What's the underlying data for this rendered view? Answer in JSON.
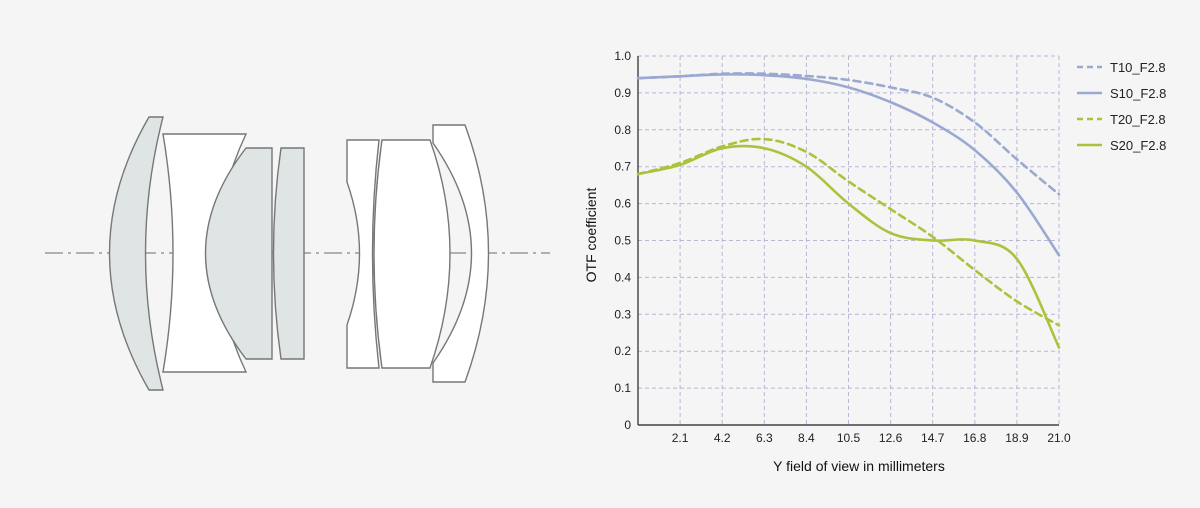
{
  "colors": {
    "background": "#f5f5f5",
    "lens_fill": "#dfe4e4",
    "lens_fill_light": "#ffffff",
    "lens_stroke": "#777777",
    "grid": "#b9b6d6",
    "axis": "#222222",
    "blue": "#9ba8d2",
    "green": "#a9c43c"
  },
  "lens_diagram": {
    "optical_axis_style": "dash-dot",
    "element_count": 8
  },
  "chart_data": {
    "type": "line",
    "title": "",
    "xlabel": "Y field of view in millimeters",
    "ylabel": "OTF coefficient",
    "xlim": [
      0,
      21.0
    ],
    "ylim": [
      0,
      1.0
    ],
    "x_ticks": [
      2.1,
      4.2,
      6.3,
      8.4,
      10.5,
      12.6,
      14.7,
      16.8,
      18.9,
      21.0
    ],
    "x_tick_labels": [
      "2.1",
      "4.2",
      "6.3",
      "8.4",
      "10.5",
      "12.6",
      "14.7",
      "16.8",
      "18.9",
      "21.0"
    ],
    "y_ticks": [
      0,
      0.1,
      0.2,
      0.3,
      0.4,
      0.5,
      0.6,
      0.7,
      0.8,
      0.9,
      1.0
    ],
    "y_tick_labels": [
      "0",
      "0.1",
      "0.2",
      "0.3",
      "0.4",
      "0.5",
      "0.6",
      "0.7",
      "0.8",
      "0.9",
      "1.0"
    ],
    "grid": true,
    "legend_position": "right",
    "series": [
      {
        "name": "T10_F2.8",
        "color": "#9ba8d2",
        "dashed": true,
        "x": [
          0,
          2.1,
          4.2,
          6.3,
          8.4,
          10.5,
          12.6,
          14.7,
          16.8,
          18.9,
          21.0
        ],
        "y": [
          0.94,
          0.945,
          0.952,
          0.952,
          0.946,
          0.935,
          0.915,
          0.887,
          0.82,
          0.72,
          0.625
        ]
      },
      {
        "name": "S10_F2.8",
        "color": "#9ba8d2",
        "dashed": false,
        "x": [
          0,
          2.1,
          4.2,
          6.3,
          8.4,
          10.5,
          12.6,
          14.7,
          16.8,
          18.9,
          21.0
        ],
        "y": [
          0.94,
          0.945,
          0.95,
          0.948,
          0.938,
          0.915,
          0.875,
          0.82,
          0.745,
          0.63,
          0.46
        ]
      },
      {
        "name": "T20_F2.8",
        "color": "#a9c43c",
        "dashed": true,
        "x": [
          0,
          2.1,
          4.2,
          6.3,
          8.4,
          10.5,
          12.6,
          14.7,
          16.8,
          18.9,
          21.0
        ],
        "y": [
          0.68,
          0.71,
          0.755,
          0.775,
          0.74,
          0.66,
          0.585,
          0.51,
          0.42,
          0.335,
          0.27
        ]
      },
      {
        "name": "S20_F2.8",
        "color": "#a9c43c",
        "dashed": false,
        "x": [
          0,
          2.1,
          4.2,
          6.3,
          8.4,
          10.5,
          12.6,
          14.7,
          16.8,
          18.9,
          21.0
        ],
        "y": [
          0.68,
          0.705,
          0.75,
          0.75,
          0.7,
          0.6,
          0.52,
          0.5,
          0.5,
          0.45,
          0.21
        ]
      }
    ]
  }
}
